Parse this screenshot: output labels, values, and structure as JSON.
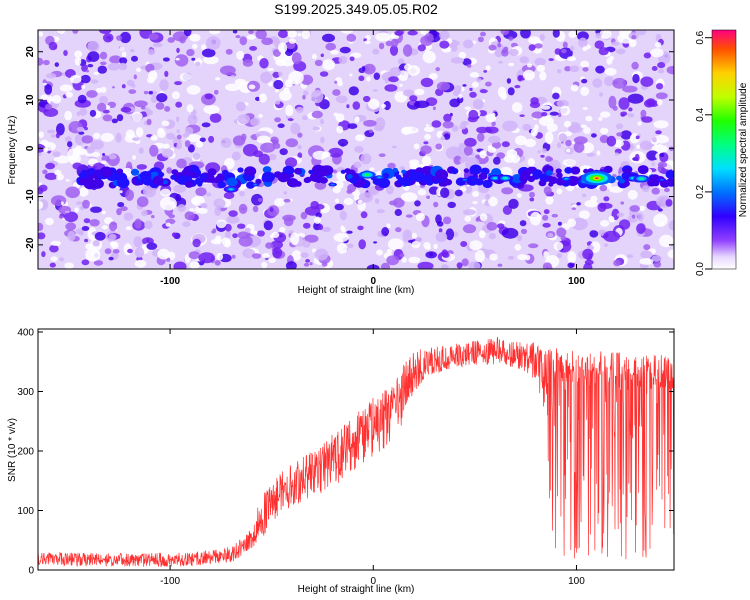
{
  "title": "S199.2025.349.05.05.R02",
  "chart_data": [
    {
      "type": "heatmap",
      "xlabel": "Height of straight line (km)",
      "ylabel": "Frequency (Hz)",
      "xlim": [
        -165,
        148
      ],
      "ylim": [
        -25,
        24.5
      ],
      "xticks": [
        -100,
        0,
        100
      ],
      "yticks": [
        -20,
        -10,
        0,
        10,
        20
      ],
      "colorbar": {
        "label": "Normalized spectral amplitude",
        "range": [
          0,
          0.62
        ],
        "ticks": [
          0.0,
          0.2,
          0.4,
          0.6
        ]
      },
      "signal_band_frequency_hz": -6,
      "peaks": [
        {
          "x": -70,
          "y": -8.5,
          "amplitude": 0.28
        },
        {
          "x": -58,
          "y": -7.5,
          "amplitude": 0.22
        },
        {
          "x": -20,
          "y": -7.5,
          "amplitude": 0.22
        },
        {
          "x": -3,
          "y": -5.5,
          "amplitude": 0.38
        },
        {
          "x": 3,
          "y": -6.0,
          "amplitude": 0.25
        },
        {
          "x": 45,
          "y": -6.5,
          "amplitude": 0.22
        },
        {
          "x": 60,
          "y": -6.2,
          "amplitude": 0.3
        },
        {
          "x": 65,
          "y": -6.2,
          "amplitude": 0.32
        },
        {
          "x": 95,
          "y": -6.3,
          "amplitude": 0.25
        },
        {
          "x": 105,
          "y": -6.8,
          "amplitude": 0.35
        },
        {
          "x": 110,
          "y": -6.2,
          "amplitude": 0.6
        },
        {
          "x": 128,
          "y": -6.2,
          "amplitude": 0.3
        },
        {
          "x": 132,
          "y": -6.3,
          "amplitude": 0.35
        },
        {
          "x": 142,
          "y": -6.5,
          "amplitude": 0.2
        }
      ]
    },
    {
      "type": "line",
      "xlabel": "Height of straight line (km)",
      "ylabel": "SNR (10 * v/v)",
      "xlim": [
        -165,
        148
      ],
      "ylim": [
        0,
        405
      ],
      "xticks": [
        -100,
        0,
        100
      ],
      "yticks": [
        0,
        100,
        200,
        300,
        400
      ],
      "series_color": "#ff3030",
      "x": [
        -165,
        -120,
        -90,
        -80,
        -70,
        -62,
        -55,
        -50,
        -45,
        -38,
        -30,
        -20,
        -10,
        0,
        5,
        10,
        15,
        20,
        30,
        40,
        50,
        60,
        70,
        80,
        85,
        88,
        95,
        110,
        125,
        135,
        140,
        148
      ],
      "values": [
        18,
        16,
        18,
        22,
        25,
        45,
        70,
        110,
        130,
        145,
        160,
        185,
        210,
        240,
        255,
        280,
        300,
        330,
        350,
        360,
        362,
        365,
        362,
        358,
        350,
        300,
        310,
        320,
        300,
        310,
        280,
        320
      ],
      "min_envelope": [
        8,
        5,
        6,
        10,
        12,
        30,
        50,
        80,
        95,
        110,
        120,
        140,
        160,
        190,
        200,
        220,
        250,
        300,
        330,
        340,
        345,
        345,
        340,
        320,
        250,
        30,
        15,
        20,
        15,
        20,
        15,
        60
      ],
      "max_envelope": [
        30,
        28,
        30,
        35,
        40,
        60,
        140,
        160,
        170,
        185,
        200,
        230,
        260,
        290,
        300,
        320,
        350,
        370,
        375,
        380,
        385,
        392,
        385,
        382,
        375,
        378,
        375,
        370,
        365,
        365,
        362,
        365
      ]
    }
  ]
}
